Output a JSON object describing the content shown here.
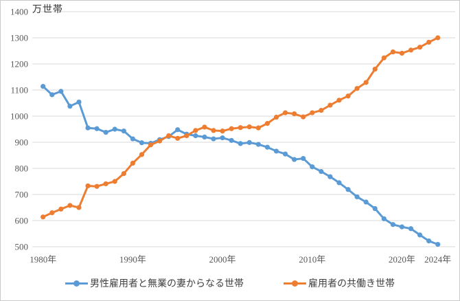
{
  "chart_data": {
    "type": "line",
    "title": "万世帯",
    "x": [
      1980,
      1981,
      1982,
      1983,
      1984,
      1985,
      1986,
      1987,
      1988,
      1989,
      1990,
      1991,
      1992,
      1993,
      1994,
      1995,
      1996,
      1997,
      1998,
      1999,
      2000,
      2001,
      2002,
      2003,
      2004,
      2005,
      2006,
      2007,
      2008,
      2009,
      2010,
      2011,
      2012,
      2013,
      2014,
      2015,
      2016,
      2017,
      2018,
      2019,
      2020,
      2021,
      2022,
      2023,
      2024
    ],
    "x_tick_labels": [
      "1980年",
      "1990年",
      "2000年",
      "2010年",
      "2020年",
      "2024年"
    ],
    "x_tick_years": [
      1980,
      1990,
      2000,
      2010,
      2020,
      2024
    ],
    "ylim": [
      500,
      1400
    ],
    "y_ticks": [
      1400,
      1300,
      1200,
      1100,
      1000,
      900,
      800,
      700,
      600,
      500
    ],
    "grid": true,
    "legend_position": "bottom",
    "series": [
      {
        "name": "男性雇用者と無業の妻からなる世帯",
        "color": "#5B9BD5",
        "values": [
          1114,
          1082,
          1095,
          1038,
          1054,
          955,
          952,
          938,
          950,
          943,
          913,
          898,
          896,
          910,
          922,
          948,
          931,
          925,
          920,
          913,
          917,
          907,
          895,
          899,
          892,
          881,
          866,
          855,
          834,
          838,
          806,
          788,
          768,
          745,
          719,
          691,
          671,
          646,
          607,
          585,
          576,
          569,
          545,
          522,
          509
        ]
      },
      {
        "name": "雇用者の共働き世帯",
        "color": "#ED7D31",
        "values": [
          614,
          630,
          644,
          658,
          650,
          733,
          731,
          741,
          750,
          780,
          820,
          853,
          890,
          905,
          925,
          915,
          925,
          945,
          958,
          945,
          943,
          952,
          956,
          959,
          955,
          972,
          996,
          1013,
          1009,
          997,
          1013,
          1022,
          1042,
          1061,
          1077,
          1106,
          1129,
          1180,
          1223,
          1246,
          1241,
          1253,
          1264,
          1283,
          1300
        ]
      }
    ],
    "colors": {
      "grid": "#d9d9d9",
      "axis_text": "#595959",
      "frame_border": "#c9c9c9",
      "title_text": "#333333"
    }
  }
}
